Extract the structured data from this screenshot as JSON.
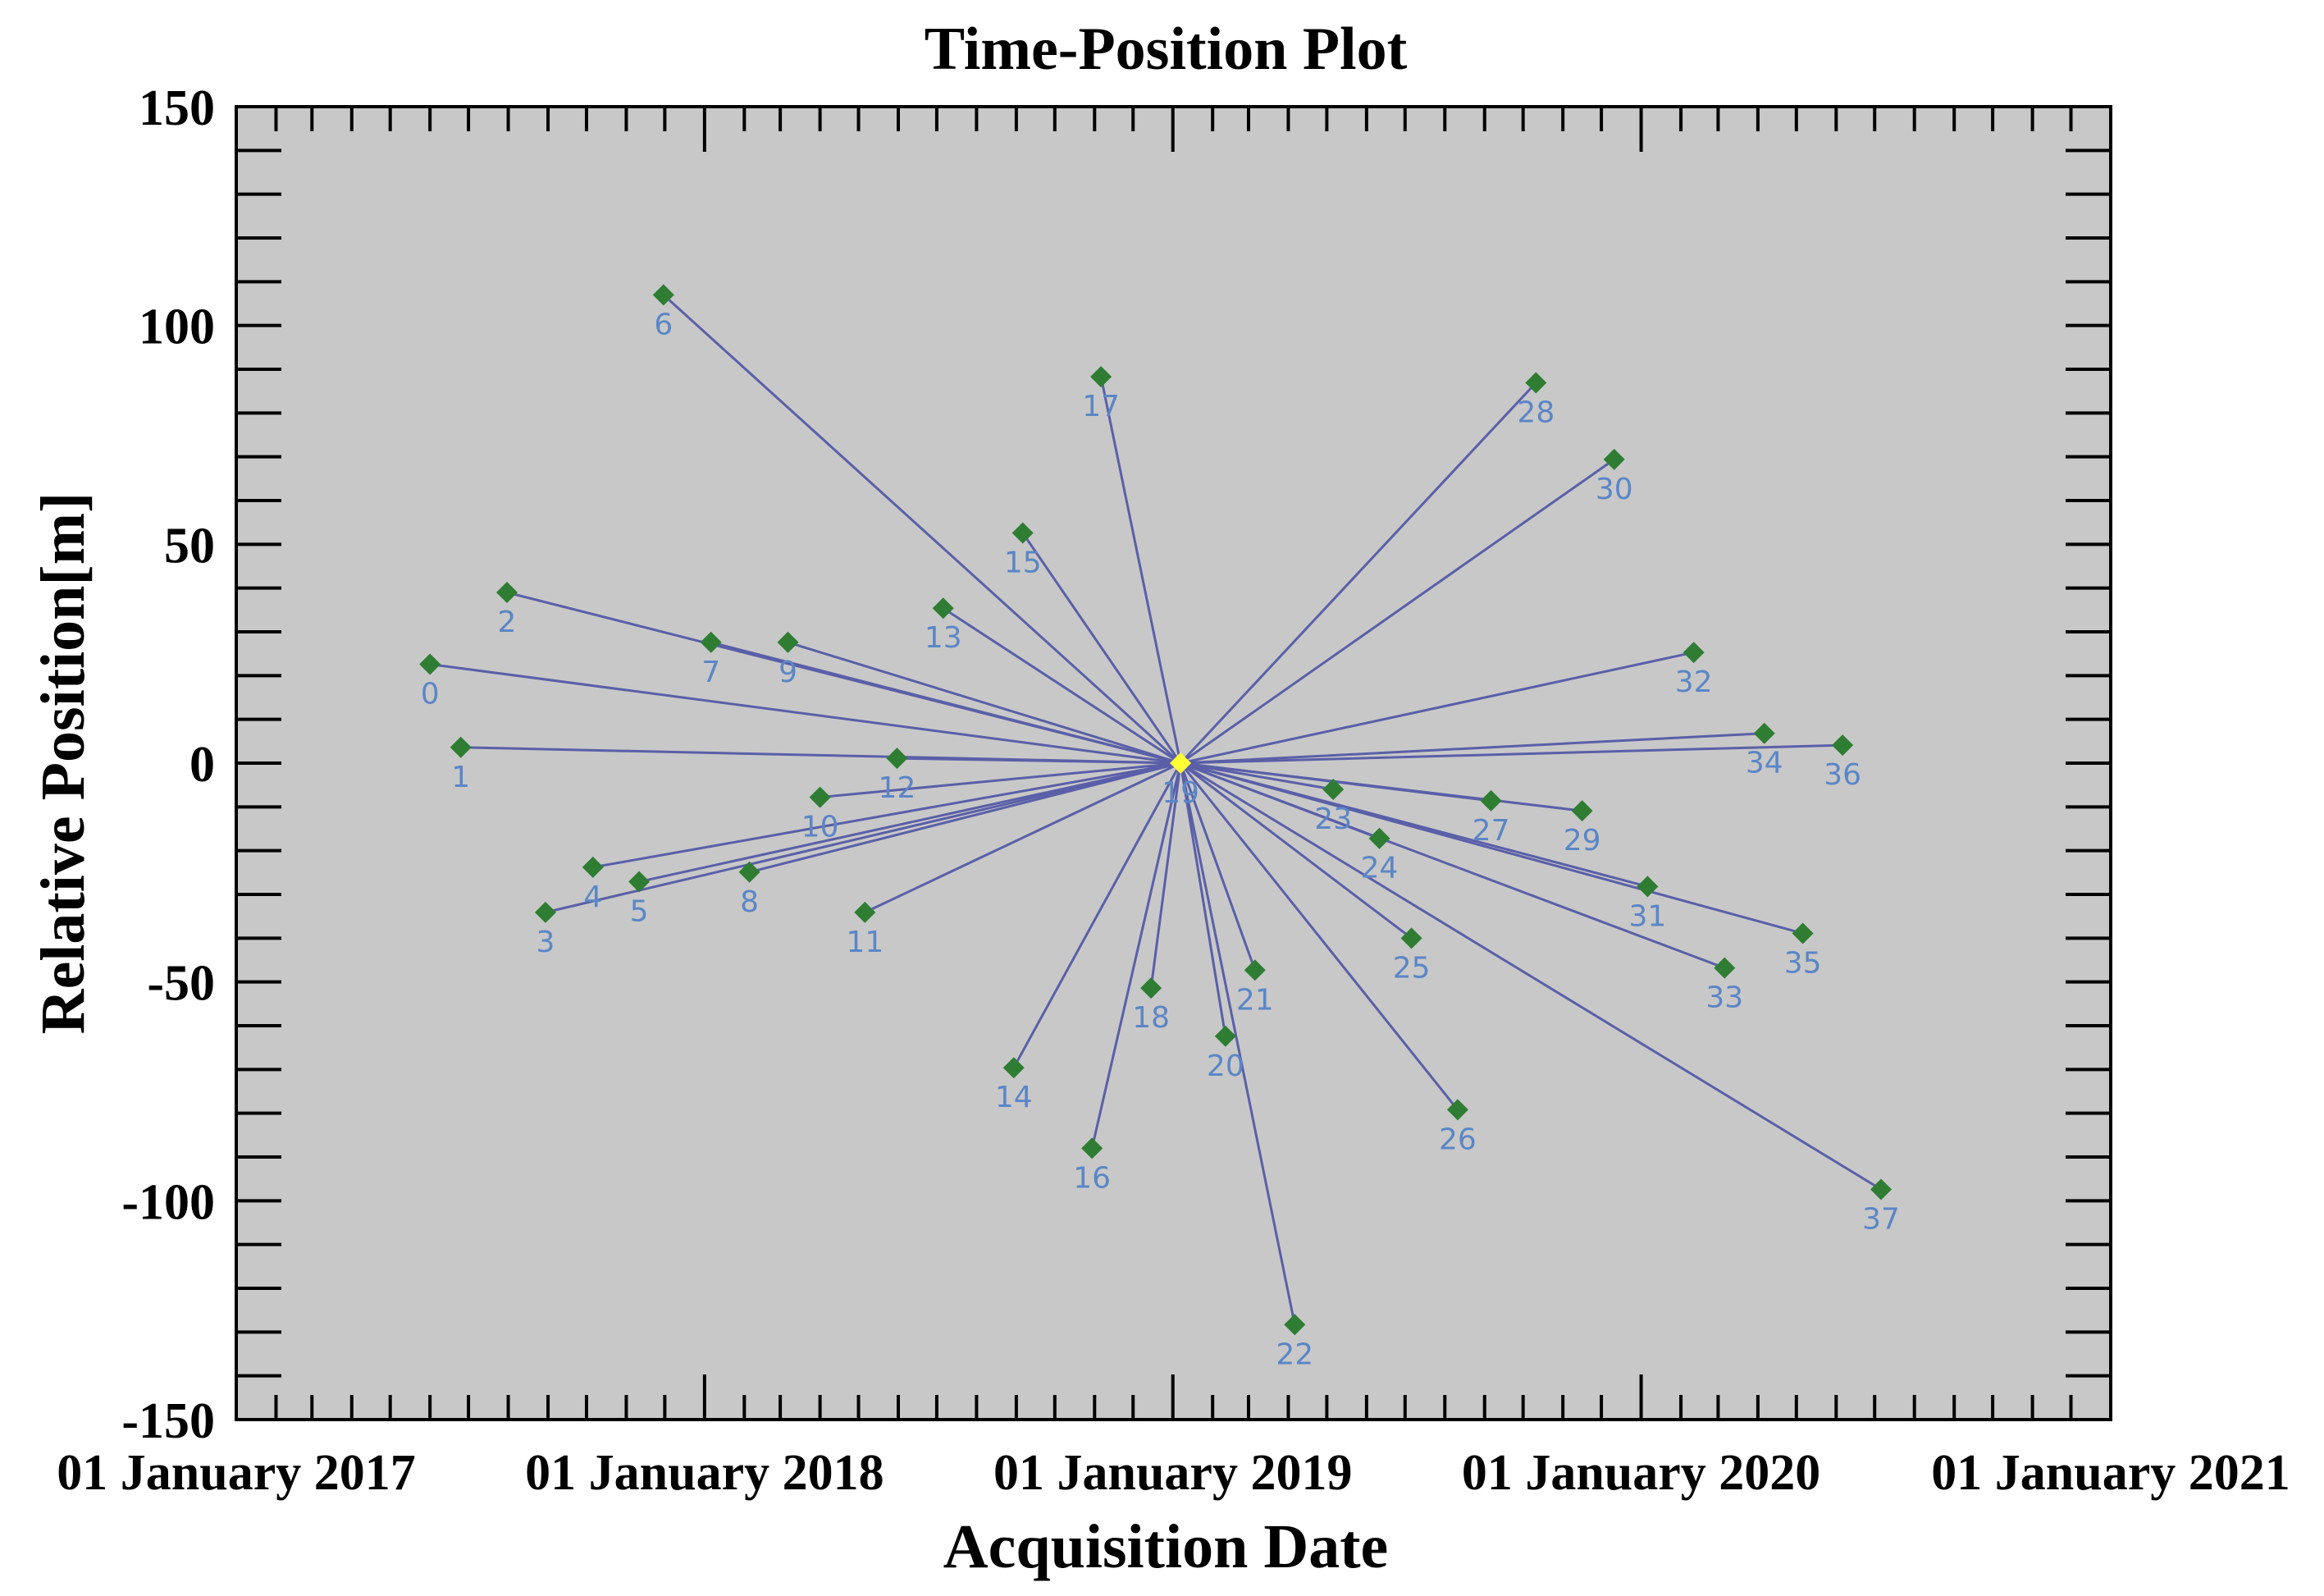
{
  "chart_data": {
    "type": "scatter",
    "title": "Time-Position Plot",
    "xlabel": "Acquisition Date",
    "ylabel": "Relative Position[m]",
    "x_type": "date",
    "xlim": [
      "2017-01-01",
      "2021-01-01"
    ],
    "ylim": [
      -150,
      150
    ],
    "x_tick_labels": [
      "01 January 2017",
      "01 January 2018",
      "01 January 2019",
      "01 January 2020",
      "01 January 2021"
    ],
    "x_ticks": [
      "2017-01-01",
      "2018-01-01",
      "2019-01-01",
      "2020-01-01",
      "2021-01-01"
    ],
    "y_tick_labels": [
      "150",
      "100",
      "50",
      "0",
      "-50",
      "-100",
      "-150"
    ],
    "y_ticks": [
      150,
      100,
      50,
      0,
      -50,
      -100,
      -150
    ],
    "grid": false,
    "plot_background": "#c8c8c8",
    "master": {
      "label": "19",
      "date": "2019-01-07",
      "position": 0,
      "color": "#ffff33"
    },
    "point_color": "#2e7d32",
    "line_color": "#5a5fa8",
    "label_color": "#5b86c6",
    "points": [
      {
        "label": "0",
        "date": "2017-06-01",
        "position": 22.6
      },
      {
        "label": "1",
        "date": "2017-06-25",
        "position": 3.6
      },
      {
        "label": "2",
        "date": "2017-07-31",
        "position": 39.0
      },
      {
        "label": "3",
        "date": "2017-08-30",
        "position": -34.1
      },
      {
        "label": "4",
        "date": "2017-10-06",
        "position": -23.8
      },
      {
        "label": "5",
        "date": "2017-11-11",
        "position": -27.1
      },
      {
        "label": "6",
        "date": "2017-11-30",
        "position": 107.0
      },
      {
        "label": "7",
        "date": "2018-01-06",
        "position": 27.6
      },
      {
        "label": "8",
        "date": "2018-02-05",
        "position": -24.9
      },
      {
        "label": "9",
        "date": "2018-03-07",
        "position": 27.6
      },
      {
        "label": "10",
        "date": "2018-04-01",
        "position": -7.8
      },
      {
        "label": "11",
        "date": "2018-05-06",
        "position": -34.1
      },
      {
        "label": "12",
        "date": "2018-05-31",
        "position": 1.1
      },
      {
        "label": "13",
        "date": "2018-07-06",
        "position": 35.4
      },
      {
        "label": "14",
        "date": "2018-08-30",
        "position": -69.6
      },
      {
        "label": "15",
        "date": "2018-09-06",
        "position": 52.6
      },
      {
        "label": "16",
        "date": "2018-10-30",
        "position": -88.0
      },
      {
        "label": "17",
        "date": "2018-11-06",
        "position": 88.3
      },
      {
        "label": "18",
        "date": "2018-12-15",
        "position": -51.4
      },
      {
        "label": "20",
        "date": "2019-02-11",
        "position": -62.4
      },
      {
        "label": "21",
        "date": "2019-03-06",
        "position": -47.3
      },
      {
        "label": "22",
        "date": "2019-04-06",
        "position": -128.3
      },
      {
        "label": "23",
        "date": "2019-05-06",
        "position": -6.0
      },
      {
        "label": "24",
        "date": "2019-06-11",
        "position": -17.2
      },
      {
        "label": "25",
        "date": "2019-07-06",
        "position": -40.0
      },
      {
        "label": "26",
        "date": "2019-08-11",
        "position": -79.2
      },
      {
        "label": "27",
        "date": "2019-09-06",
        "position": -8.6
      },
      {
        "label": "28",
        "date": "2019-10-11",
        "position": 86.9
      },
      {
        "label": "29",
        "date": "2019-11-16",
        "position": -10.9
      },
      {
        "label": "30",
        "date": "2019-12-11",
        "position": 69.4
      },
      {
        "label": "31",
        "date": "2020-01-06",
        "position": -28.2
      },
      {
        "label": "32",
        "date": "2020-02-11",
        "position": 25.3
      },
      {
        "label": "33",
        "date": "2020-03-06",
        "position": -46.8
      },
      {
        "label": "34",
        "date": "2020-04-06",
        "position": 6.8
      },
      {
        "label": "35",
        "date": "2020-05-06",
        "position": -38.9
      },
      {
        "label": "36",
        "date": "2020-06-06",
        "position": 4.1
      },
      {
        "label": "37",
        "date": "2020-07-06",
        "position": -97.4
      }
    ]
  }
}
